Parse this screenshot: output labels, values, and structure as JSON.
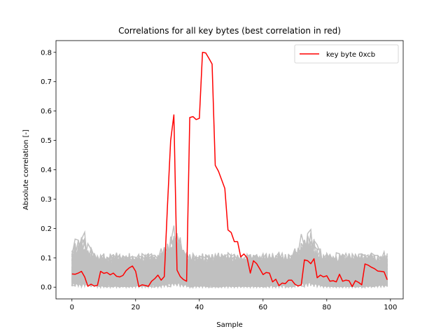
{
  "chart_data": {
    "type": "line",
    "title": "Correlations for all key bytes (best correlation in red)",
    "xlabel": "Sample",
    "ylabel": "Absolute correlation [-]",
    "xlim": [
      -5,
      104
    ],
    "ylim": [
      -0.04,
      0.84
    ],
    "xticks": [
      0,
      20,
      40,
      60,
      80,
      100
    ],
    "yticks": [
      0.0,
      0.1,
      0.2,
      0.3,
      0.4,
      0.5,
      0.6,
      0.7,
      0.8
    ],
    "xtick_labels": [
      "0",
      "20",
      "40",
      "60",
      "80",
      "100"
    ],
    "ytick_labels": [
      "0.0",
      "0.1",
      "0.2",
      "0.3",
      "0.4",
      "0.5",
      "0.6",
      "0.7",
      "0.8"
    ],
    "legend": {
      "position": "top-right",
      "label": "key byte 0xcb"
    },
    "highlight_color": "#ff0000",
    "background_color": "#c0c0c0",
    "background_series_count": 255,
    "background_band_max": 0.12,
    "background_peaks": [
      {
        "x": 3,
        "value": 0.195
      },
      {
        "x": 32,
        "value": 0.205
      },
      {
        "x": 74,
        "value": 0.205
      },
      {
        "x": 98,
        "value": 0.13
      }
    ],
    "series": [
      {
        "name": "key byte 0xcb",
        "x": [
          0,
          1,
          2,
          3,
          4,
          5,
          6,
          7,
          8,
          9,
          10,
          11,
          12,
          13,
          14,
          15,
          16,
          17,
          18,
          19,
          20,
          21,
          22,
          23,
          24,
          25,
          26,
          27,
          28,
          29,
          30,
          31,
          32,
          33,
          34,
          35,
          36,
          37,
          38,
          39,
          40,
          41,
          42,
          43,
          44,
          45,
          46,
          47,
          48,
          49,
          50,
          51,
          52,
          53,
          54,
          55,
          56,
          57,
          58,
          59,
          60,
          61,
          62,
          63,
          64,
          65,
          66,
          67,
          68,
          69,
          70,
          71,
          72,
          73,
          74,
          75,
          76,
          77,
          78,
          79,
          80,
          81,
          82,
          83,
          84,
          85,
          86,
          87,
          88,
          89,
          90,
          91,
          92,
          93,
          94,
          95,
          96,
          97,
          98,
          99
        ],
        "values": [
          0.045,
          0.044,
          0.048,
          0.054,
          0.035,
          0.003,
          0.01,
          0.004,
          0.006,
          0.054,
          0.047,
          0.05,
          0.042,
          0.048,
          0.037,
          0.035,
          0.04,
          0.056,
          0.066,
          0.072,
          0.054,
          0.002,
          0.008,
          0.006,
          0.003,
          0.02,
          0.029,
          0.041,
          0.024,
          0.036,
          0.28,
          0.5,
          0.587,
          0.058,
          0.036,
          0.026,
          0.02,
          0.578,
          0.581,
          0.571,
          0.575,
          0.8,
          0.798,
          0.78,
          0.76,
          0.415,
          0.395,
          0.366,
          0.336,
          0.195,
          0.186,
          0.155,
          0.155,
          0.103,
          0.113,
          0.1,
          0.048,
          0.09,
          0.08,
          0.062,
          0.043,
          0.05,
          0.048,
          0.018,
          0.027,
          0.005,
          0.014,
          0.012,
          0.024,
          0.024,
          0.01,
          0.004,
          0.008,
          0.093,
          0.09,
          0.08,
          0.097,
          0.032,
          0.041,
          0.035,
          0.039,
          0.02,
          0.022,
          0.018,
          0.044,
          0.02,
          0.024,
          0.022,
          0.002,
          0.022,
          0.016,
          0.008,
          0.079,
          0.075,
          0.068,
          0.063,
          0.055,
          0.054,
          0.052,
          0.025
        ]
      }
    ]
  }
}
